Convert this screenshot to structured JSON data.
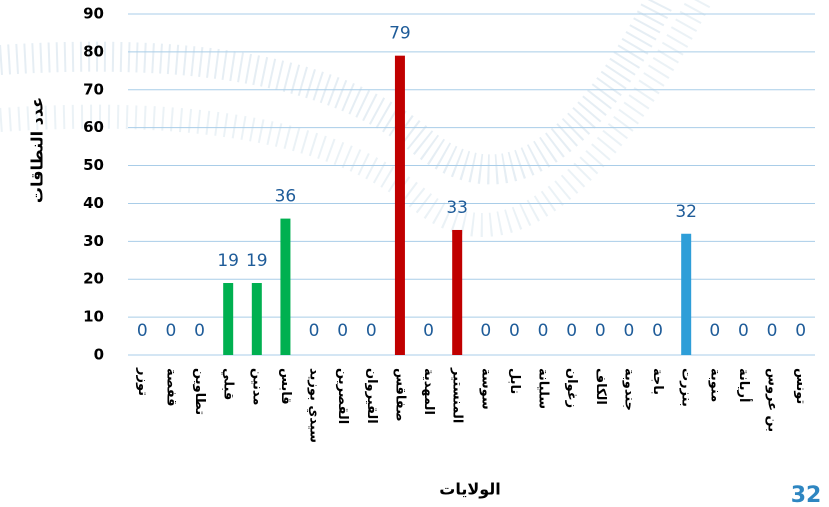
{
  "chart_data": {
    "type": "bar",
    "y_label": "عدد النطاقات",
    "x_label": "الولايات",
    "page_number": "32",
    "categories": [
      "توزر",
      "قفصة",
      "تطاوين",
      "قبلي",
      "مدنين",
      "قابس",
      "سيدي بوزيد",
      "القصرين",
      "القيروان",
      "صفاقس",
      "المهدية",
      "المنستير",
      "سوسة",
      "نابل",
      "سليانة",
      "زغوان",
      "الكاف",
      "جندوبة",
      "باجة",
      "بنزرت",
      "منوبة",
      "أريانة",
      "بن عروس",
      "تونس"
    ],
    "values": [
      0,
      0,
      0,
      19,
      19,
      36,
      0,
      0,
      0,
      79,
      0,
      33,
      0,
      0,
      0,
      0,
      0,
      0,
      0,
      32,
      0,
      0,
      0,
      0
    ],
    "colors": [
      "#00b050",
      "#00b050",
      "#00b050",
      "#00b050",
      "#00b050",
      "#00b050",
      "#c00000",
      "#c00000",
      "#c00000",
      "#c00000",
      "#c00000",
      "#c00000",
      "#2e9ed8",
      "#2e9ed8",
      "#2e9ed8",
      "#2e9ed8",
      "#2e9ed8",
      "#2e9ed8",
      "#2e9ed8",
      "#2e9ed8",
      "#2e9ed8",
      "#2e9ed8",
      "#2e9ed8",
      "#2e9ed8"
    ],
    "ylim": [
      0,
      90
    ],
    "yticks": [
      0,
      10,
      20,
      30,
      40,
      50,
      60,
      70,
      80,
      90
    ],
    "grid": true
  }
}
